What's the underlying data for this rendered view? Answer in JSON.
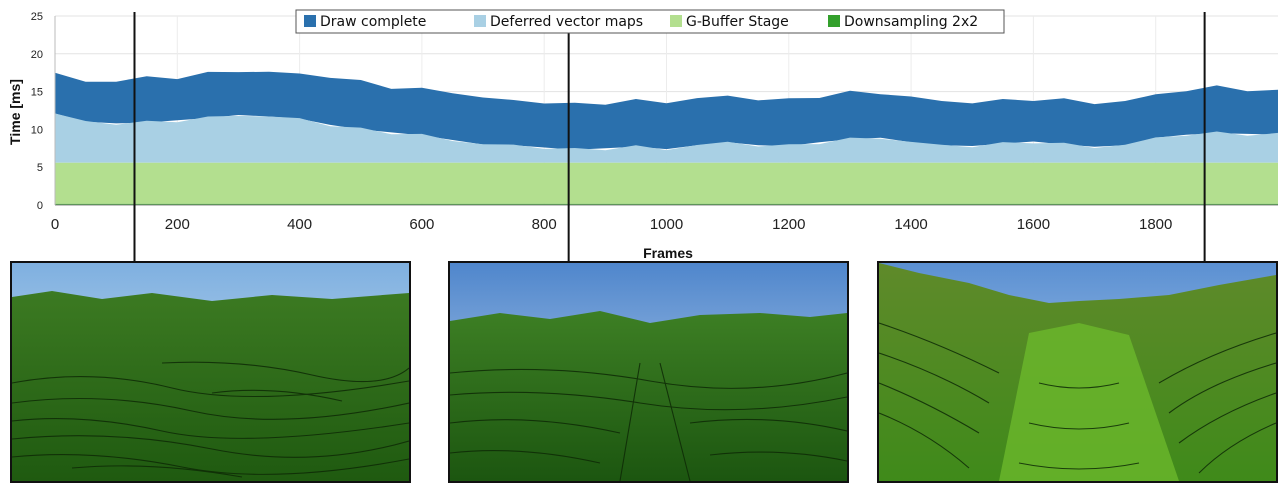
{
  "chart_data": {
    "type": "area",
    "stacked": true,
    "title": "",
    "xlabel": "Frames",
    "ylabel": "Time [ms]",
    "xlim": [
      0,
      2000
    ],
    "ylim": [
      0,
      25
    ],
    "x_ticks": [
      0,
      200,
      400,
      600,
      800,
      1000,
      1200,
      1400,
      1600,
      1800
    ],
    "y_ticks": [
      0,
      5,
      10,
      15,
      20,
      25
    ],
    "grid": true,
    "legend_position": "top-center",
    "x": [
      0,
      50,
      100,
      150,
      200,
      250,
      300,
      350,
      400,
      450,
      500,
      550,
      600,
      650,
      700,
      750,
      800,
      850,
      900,
      950,
      1000,
      1050,
      1100,
      1150,
      1200,
      1250,
      1300,
      1350,
      1400,
      1450,
      1500,
      1550,
      1600,
      1650,
      1700,
      1750,
      1800,
      1850,
      1900,
      1950,
      2000
    ],
    "series": [
      {
        "name": "Draw complete",
        "color": "#2a70ad",
        "totals": [
          17.5,
          16.2,
          16.5,
          16.8,
          16.9,
          17.4,
          17.7,
          17.6,
          17.3,
          17.0,
          16.3,
          15.6,
          15.3,
          14.9,
          14.2,
          13.8,
          13.6,
          13.3,
          13.5,
          13.8,
          13.6,
          14.1,
          14.4,
          14.0,
          13.9,
          14.4,
          14.9,
          14.8,
          14.3,
          13.7,
          13.6,
          13.8,
          14.0,
          13.9,
          13.5,
          13.7,
          14.6,
          15.2,
          15.6,
          15.3,
          15.0
        ]
      },
      {
        "name": "Deferred vector maps",
        "color": "#a9d0e4",
        "totals": [
          12.1,
          11.0,
          10.8,
          10.9,
          11.2,
          11.5,
          11.9,
          11.7,
          11.4,
          10.6,
          10.0,
          9.6,
          9.2,
          8.6,
          8.0,
          7.9,
          7.6,
          7.3,
          7.5,
          7.7,
          7.4,
          7.9,
          8.3,
          7.9,
          7.8,
          8.3,
          8.7,
          8.9,
          8.3,
          7.9,
          7.8,
          8.1,
          8.4,
          8.0,
          7.7,
          7.9,
          8.9,
          9.3,
          9.5,
          9.4,
          9.3
        ]
      },
      {
        "name": "G-Buffer Stage",
        "color": "#b3df8f",
        "totals": [
          5.6,
          5.6,
          5.6,
          5.6,
          5.6,
          5.6,
          5.6,
          5.6,
          5.6,
          5.6,
          5.6,
          5.6,
          5.6,
          5.6,
          5.6,
          5.6,
          5.6,
          5.6,
          5.6,
          5.6,
          5.6,
          5.6,
          5.6,
          5.6,
          5.6,
          5.6,
          5.6,
          5.6,
          5.6,
          5.6,
          5.6,
          5.6,
          5.6,
          5.6,
          5.6,
          5.6,
          5.6,
          5.6,
          5.6,
          5.6,
          5.6
        ]
      },
      {
        "name": "Downsampling 2x2",
        "color": "#33a02c",
        "totals": [
          0.15,
          0.15,
          0.15,
          0.15,
          0.15,
          0.15,
          0.15,
          0.15,
          0.15,
          0.15,
          0.15,
          0.15,
          0.15,
          0.15,
          0.15,
          0.15,
          0.15,
          0.15,
          0.15,
          0.15,
          0.15,
          0.15,
          0.15,
          0.15,
          0.15,
          0.15,
          0.15,
          0.15,
          0.15,
          0.15,
          0.15,
          0.15,
          0.15,
          0.15,
          0.15,
          0.15,
          0.15,
          0.15,
          0.15,
          0.15,
          0.15
        ]
      }
    ],
    "markers": [
      {
        "frame": 130,
        "image": "left"
      },
      {
        "frame": 840,
        "image": "center"
      },
      {
        "frame": 1880,
        "image": "right"
      }
    ]
  },
  "thumbnails": [
    {
      "name": "terrain-render-left",
      "sky": "#a7c7e6",
      "ground": "#2f6b1c"
    },
    {
      "name": "terrain-render-center",
      "sky": "#6f9fd6",
      "ground": "#2a6a1a"
    },
    {
      "name": "terrain-render-right",
      "sky": "#7aa6da",
      "ground": "#4d8a22"
    }
  ]
}
